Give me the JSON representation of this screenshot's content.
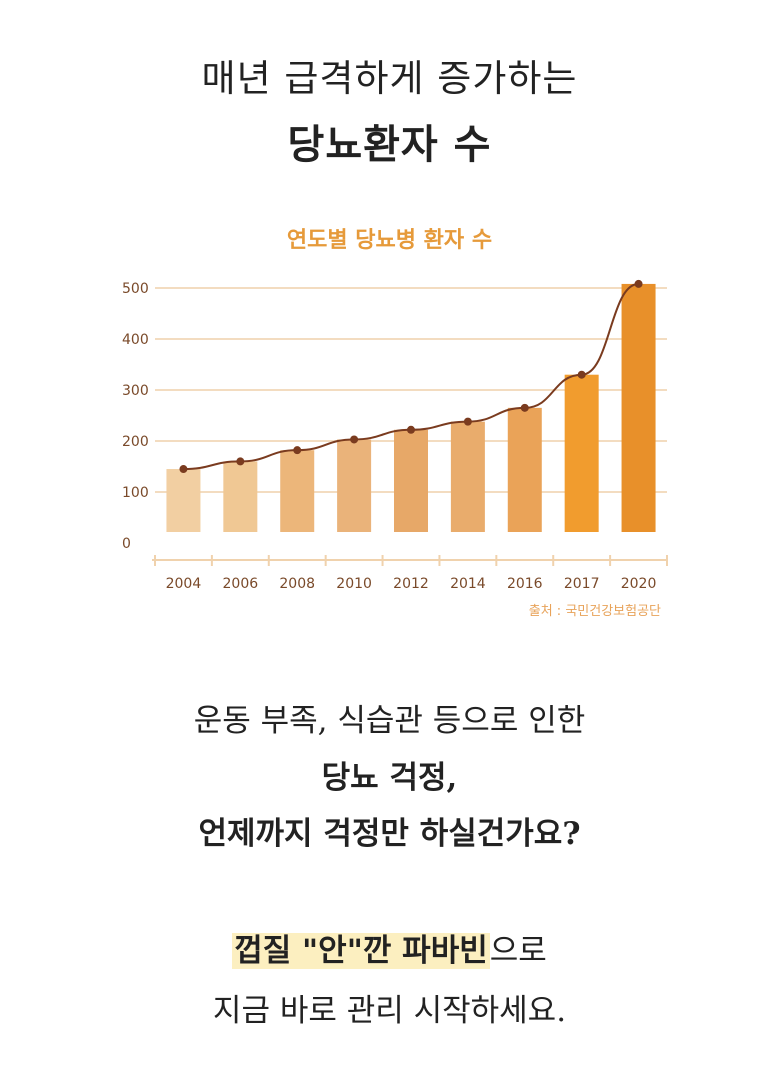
{
  "headline": {
    "line1": "매년 급격하게 증가하는",
    "line2": "당뇨환자 수"
  },
  "chart_data": {
    "type": "bar",
    "title": "연도별 당뇨병 환자 수",
    "categories": [
      "2004",
      "2006",
      "2008",
      "2010",
      "2012",
      "2014",
      "2016",
      "2017",
      "2020"
    ],
    "values": [
      145,
      160,
      182,
      203,
      222,
      238,
      265,
      330,
      508
    ],
    "line_overlay": true,
    "ylim": [
      0,
      500
    ],
    "yticks": [
      "0",
      "100",
      "200",
      "300",
      "400",
      "500"
    ],
    "grid": true,
    "source": "출처 : 국민건강보험공단",
    "bar_colors": [
      "#f2cfa2",
      "#f0c894",
      "#ecb67a",
      "#eab37a",
      "#e7a868",
      "#e9ac6c",
      "#eaa358",
      "#f19c2e",
      "#e8902a"
    ],
    "line_color": "#7a3b1f",
    "grid_color": "#f3dcc0",
    "axis_color": "#f0d2ad"
  },
  "body": {
    "line1": "운동 부족, 식습관 등으로 인한",
    "line2": "당뇨 걱정,",
    "line3": "언제까지 걱정만 하실건가요?"
  },
  "cta": {
    "highlight": "껍질 \"안\"깐 파바빈",
    "suffix": "으로",
    "line2": "지금 바로 관리 시작하세요."
  }
}
